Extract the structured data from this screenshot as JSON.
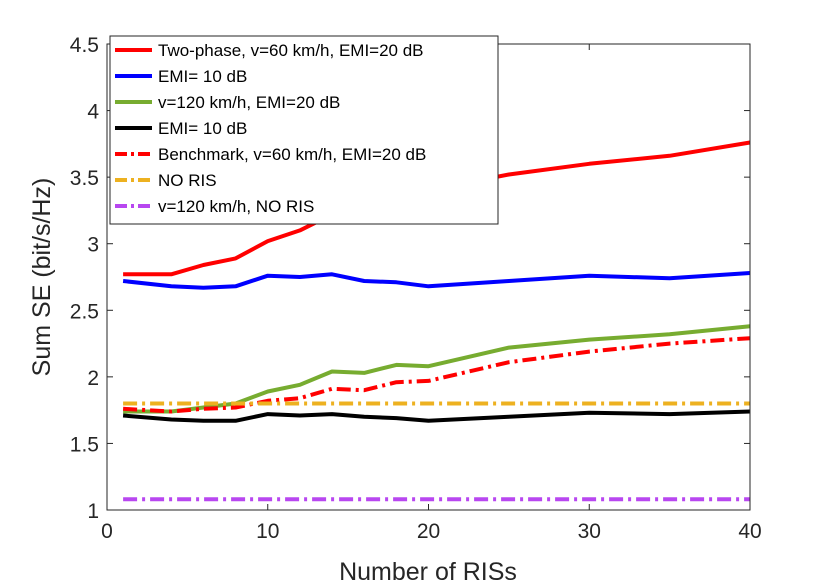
{
  "chart_data": {
    "type": "line",
    "xlabel": "Number of RISs",
    "ylabel": "Sum SE (bit/s/Hz)",
    "xlim": [
      0,
      40
    ],
    "ylim": [
      1,
      4.5
    ],
    "xticks": [
      0,
      10,
      20,
      30,
      40
    ],
    "yticks": [
      1,
      1.5,
      2,
      2.5,
      3,
      3.5,
      4,
      4.5
    ],
    "grid": false,
    "legend_position": "top-left",
    "series": [
      {
        "name": "Two-phase, v=60 km/h, EMI=20 dB",
        "color": "#ff0000",
        "dash": "solid",
        "x": [
          1,
          4,
          6,
          8,
          10,
          12,
          14,
          16,
          18,
          20,
          22,
          25,
          30,
          35,
          40
        ],
        "y": [
          2.77,
          2.77,
          2.84,
          2.89,
          3.02,
          3.1,
          3.22,
          3.3,
          3.36,
          3.4,
          3.45,
          3.52,
          3.6,
          3.66,
          3.76
        ]
      },
      {
        "name": "EMI= 10 dB",
        "color": "#0000ff",
        "dash": "solid",
        "x": [
          1,
          4,
          6,
          8,
          10,
          12,
          14,
          16,
          18,
          20,
          25,
          30,
          35,
          40
        ],
        "y": [
          2.72,
          2.68,
          2.67,
          2.68,
          2.76,
          2.75,
          2.77,
          2.72,
          2.71,
          2.68,
          2.72,
          2.76,
          2.74,
          2.78
        ]
      },
      {
        "name": "v=120 km/h, EMI=20 dB",
        "color": "#77ac30",
        "dash": "solid",
        "x": [
          1,
          4,
          6,
          8,
          10,
          12,
          14,
          16,
          18,
          20,
          25,
          30,
          35,
          40
        ],
        "y": [
          1.74,
          1.74,
          1.77,
          1.8,
          1.89,
          1.94,
          2.04,
          2.03,
          2.09,
          2.08,
          2.22,
          2.28,
          2.32,
          2.38
        ]
      },
      {
        "name": "EMI= 10 dB",
        "color": "#000000",
        "dash": "solid",
        "x": [
          1,
          4,
          6,
          8,
          10,
          12,
          14,
          16,
          18,
          20,
          25,
          30,
          35,
          40
        ],
        "y": [
          1.71,
          1.68,
          1.67,
          1.67,
          1.72,
          1.71,
          1.72,
          1.7,
          1.69,
          1.67,
          1.7,
          1.73,
          1.72,
          1.74
        ]
      },
      {
        "name": "Benchmark, v=60 km/h, EMI=20 dB",
        "color": "#ff0000",
        "dash": "dashdot",
        "x": [
          1,
          4,
          6,
          8,
          10,
          12,
          14,
          16,
          18,
          20,
          25,
          30,
          35,
          40
        ],
        "y": [
          1.76,
          1.74,
          1.76,
          1.77,
          1.82,
          1.84,
          1.91,
          1.9,
          1.96,
          1.97,
          2.11,
          2.19,
          2.25,
          2.29
        ]
      },
      {
        "name": "NO RIS",
        "color": "#edb120",
        "dash": "dashdot",
        "x": [
          1,
          40
        ],
        "y": [
          1.8,
          1.8
        ]
      },
      {
        "name": "v=120 km/h, NO RIS",
        "color": "#b847f0",
        "dash": "dashdot",
        "x": [
          1,
          40
        ],
        "y": [
          1.08,
          1.08
        ]
      }
    ]
  }
}
